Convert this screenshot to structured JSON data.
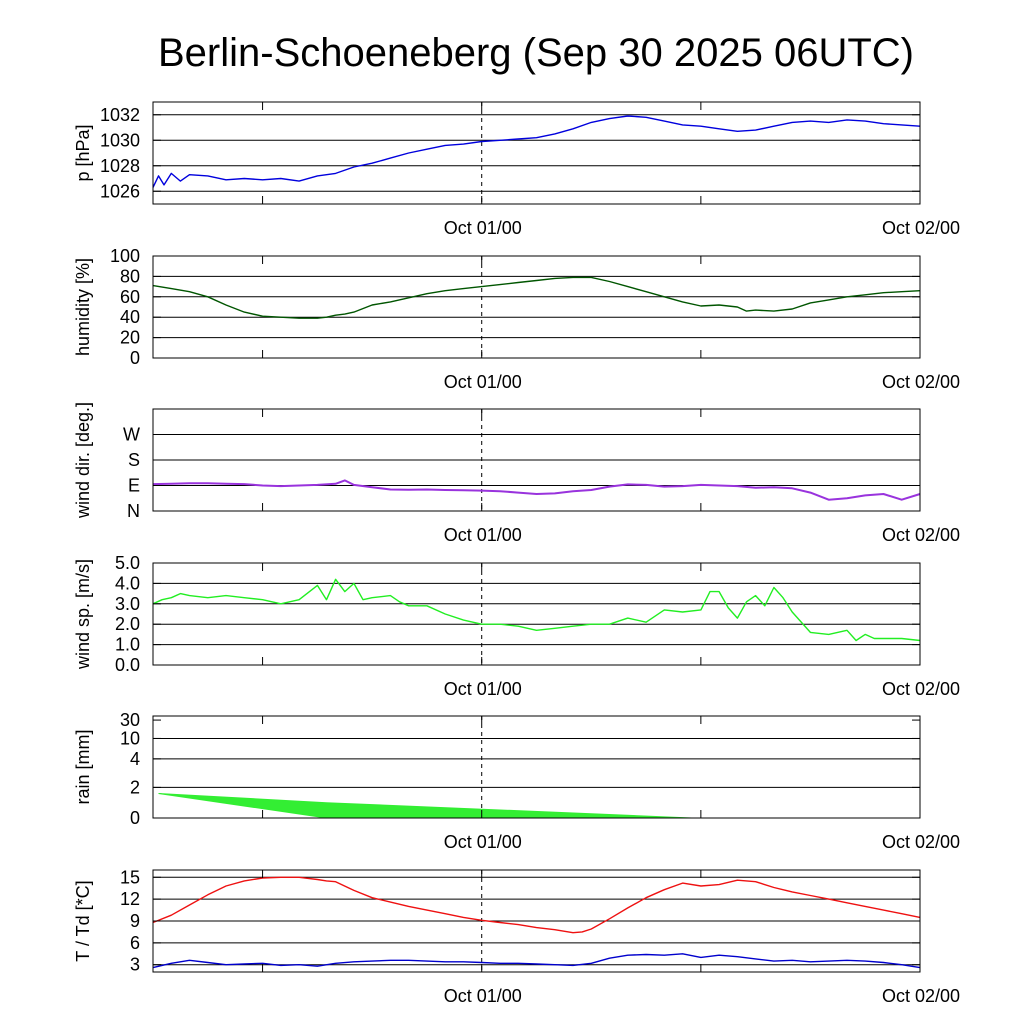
{
  "title": "Berlin-Schoeneberg (Sep 30 2025 06UTC)",
  "x_axis": {
    "range_hours": [
      0,
      42
    ],
    "tick_labels": [
      "Oct 01/00",
      "Oct 02/00"
    ],
    "tick_hours": [
      18,
      42
    ],
    "minor_tick_hours": [
      6,
      30
    ],
    "dashed_line_hour": 18
  },
  "colors": {
    "pressure": "#0000dd",
    "humidity": "#005500",
    "wind_dir": "#9933dd",
    "wind_speed": "#22ee22",
    "rain": "#33ee33",
    "temperature": "#ee1111",
    "dewpoint": "#0000cc"
  },
  "chart_data": [
    {
      "id": "pressure",
      "type": "line",
      "ylabel": "p [hPa]",
      "ylim": [
        1025,
        1033
      ],
      "yticks": [
        1026,
        1028,
        1030,
        1032
      ],
      "ytick_labels": [
        "1026",
        "1028",
        "1030",
        "1032"
      ],
      "gridlines": [
        1026,
        1028,
        1030,
        1032
      ],
      "series": [
        {
          "name": "pressure",
          "x": [
            0,
            0.3,
            0.6,
            1,
            1.5,
            2,
            3,
            4,
            5,
            6,
            7,
            8,
            9,
            10,
            11,
            12,
            13,
            14,
            15,
            16,
            17,
            18,
            19,
            20,
            21,
            22,
            23,
            24,
            25,
            26,
            27,
            28,
            29,
            30,
            31,
            32,
            33,
            34,
            35,
            36,
            37,
            38,
            39,
            40,
            41,
            42
          ],
          "y": [
            1026.3,
            1027.2,
            1026.5,
            1027.4,
            1026.8,
            1027.3,
            1027.2,
            1026.9,
            1027.0,
            1026.9,
            1027.0,
            1026.8,
            1027.2,
            1027.4,
            1027.9,
            1028.2,
            1028.6,
            1029.0,
            1029.3,
            1029.6,
            1029.7,
            1029.9,
            1030.0,
            1030.1,
            1030.2,
            1030.5,
            1030.9,
            1031.4,
            1031.7,
            1031.9,
            1031.8,
            1031.5,
            1031.2,
            1031.1,
            1030.9,
            1030.7,
            1030.8,
            1031.1,
            1031.4,
            1031.5,
            1031.4,
            1031.6,
            1031.5,
            1031.3,
            1031.2,
            1031.1
          ]
        }
      ]
    },
    {
      "id": "humidity",
      "type": "line",
      "ylabel": "humidity [%]",
      "ylim": [
        0,
        100
      ],
      "yticks": [
        0,
        20,
        40,
        60,
        80,
        100
      ],
      "ytick_labels": [
        "0",
        "20",
        "40",
        "60",
        "80",
        "100"
      ],
      "gridlines": [
        20,
        40,
        60,
        80
      ],
      "series": [
        {
          "name": "humidity",
          "x": [
            0,
            1,
            2,
            3,
            4,
            5,
            6,
            7,
            8,
            9,
            9.5,
            10,
            10.5,
            11,
            12,
            13,
            14,
            15,
            16,
            17,
            18,
            19,
            20,
            21,
            22,
            23,
            24,
            25,
            26,
            27,
            28,
            29,
            30,
            31,
            32,
            32.5,
            33,
            34,
            35,
            36,
            37,
            38,
            39,
            40,
            41,
            42
          ],
          "y": [
            71,
            68,
            65,
            60,
            52,
            45,
            41,
            40,
            39,
            39,
            40,
            42,
            43,
            45,
            52,
            55,
            59,
            63,
            66,
            68,
            70,
            72,
            74,
            76,
            78,
            79,
            79,
            75,
            70,
            65,
            60,
            55,
            51,
            52,
            50,
            46,
            47,
            46,
            48,
            54,
            57,
            60,
            62,
            64,
            65,
            66
          ]
        }
      ]
    },
    {
      "id": "wind_dir",
      "type": "line",
      "ylabel": "wind dir. [deg.]",
      "ylim": [
        0,
        360
      ],
      "yticks": [
        0,
        90,
        180,
        270
      ],
      "ytick_labels": [
        "N",
        "E",
        "S",
        "W"
      ],
      "gridlines": [
        90,
        180,
        270
      ],
      "series": [
        {
          "name": "wind direction",
          "x": [
            0,
            1,
            2,
            3,
            4,
            5,
            6,
            7,
            8,
            9,
            10,
            10.5,
            11,
            12,
            13,
            14,
            15,
            16,
            17,
            18,
            19,
            20,
            21,
            22,
            23,
            24,
            25,
            26,
            27,
            28,
            29,
            30,
            31,
            32,
            33,
            34,
            35,
            36,
            37,
            38,
            39,
            40,
            41,
            42
          ],
          "y": [
            95,
            96,
            98,
            98,
            96,
            95,
            90,
            88,
            90,
            92,
            96,
            108,
            92,
            84,
            76,
            75,
            76,
            74,
            73,
            72,
            70,
            65,
            60,
            62,
            70,
            74,
            86,
            94,
            92,
            86,
            88,
            92,
            90,
            88,
            82,
            84,
            80,
            65,
            40,
            45,
            55,
            60,
            40,
            60
          ]
        }
      ]
    },
    {
      "id": "wind_speed",
      "type": "line",
      "ylabel": "wind sp. [m/s]",
      "ylim": [
        0,
        5
      ],
      "yticks": [
        0,
        1,
        2,
        3,
        4,
        5
      ],
      "ytick_labels": [
        "0.0",
        "1.0",
        "2.0",
        "3.0",
        "4.0",
        "5.0"
      ],
      "gridlines": [
        1,
        2,
        3,
        4
      ],
      "series": [
        {
          "name": "wind speed",
          "x": [
            0,
            0.5,
            1,
            1.5,
            2,
            3,
            4,
            5,
            6,
            7,
            8,
            9,
            9.5,
            10,
            10.5,
            11,
            11.5,
            12,
            13,
            13.5,
            14,
            15,
            16,
            17,
            18,
            19,
            20,
            21,
            22,
            23,
            24,
            25,
            26,
            27,
            28,
            29,
            30,
            30.5,
            31,
            31.5,
            32,
            32.5,
            33,
            33.5,
            34,
            34.5,
            35,
            36,
            37,
            38,
            38.5,
            39,
            39.5,
            40,
            41,
            42
          ],
          "y": [
            3.0,
            3.2,
            3.3,
            3.5,
            3.4,
            3.3,
            3.4,
            3.3,
            3.2,
            3.0,
            3.2,
            3.9,
            3.2,
            4.2,
            3.6,
            4.0,
            3.2,
            3.3,
            3.4,
            3.1,
            2.9,
            2.9,
            2.5,
            2.2,
            2.0,
            2.0,
            1.9,
            1.7,
            1.8,
            1.9,
            2.0,
            2.0,
            2.3,
            2.1,
            2.7,
            2.6,
            2.7,
            3.6,
            3.6,
            2.8,
            2.3,
            3.1,
            3.4,
            2.9,
            3.8,
            3.3,
            2.6,
            1.6,
            1.5,
            1.7,
            1.2,
            1.5,
            1.3,
            1.3,
            1.3,
            1.2
          ]
        }
      ]
    },
    {
      "id": "rain",
      "type": "area",
      "ylabel": "rain [mm]",
      "ylim": [
        0,
        30
      ],
      "yticks": [
        0,
        2,
        4,
        10,
        30
      ],
      "ytick_labels": [
        "0",
        "2",
        "4",
        "10",
        "30"
      ],
      "gridlines": [
        2,
        4,
        10
      ],
      "series": [
        {
          "name": "rain range",
          "x": [
            0.3,
            9.5,
            29.5,
            42
          ],
          "upper": [
            1.6,
            1.0,
            0.0,
            0.0
          ],
          "lower": [
            1.6,
            0.0,
            0.0,
            0.0
          ]
        }
      ]
    },
    {
      "id": "temperature",
      "type": "line",
      "ylabel": "T / Td [*C]",
      "ylim": [
        2,
        16
      ],
      "yticks": [
        3,
        6,
        9,
        12,
        15
      ],
      "ytick_labels": [
        "3",
        "6",
        "9",
        "12",
        "15"
      ],
      "gridlines": [
        3,
        6,
        9,
        12,
        15
      ],
      "series": [
        {
          "name": "temperature",
          "x": [
            0,
            1,
            2,
            3,
            4,
            5,
            6,
            7,
            8,
            9,
            9.5,
            10,
            11,
            12,
            13,
            14,
            15,
            16,
            17,
            18,
            19,
            20,
            21,
            22,
            23,
            23.5,
            24,
            25,
            26,
            27,
            28,
            29,
            30,
            31,
            32,
            33,
            34,
            35,
            36,
            37,
            38,
            39,
            40,
            41,
            42
          ],
          "y": [
            8.8,
            9.8,
            11.2,
            12.6,
            13.8,
            14.5,
            14.9,
            15.0,
            15.0,
            14.7,
            14.5,
            14.4,
            13.2,
            12.2,
            11.6,
            11.0,
            10.5,
            10.0,
            9.5,
            9.1,
            8.8,
            8.5,
            8.1,
            7.8,
            7.4,
            7.5,
            7.9,
            9.3,
            10.8,
            12.2,
            13.3,
            14.2,
            13.8,
            14.0,
            14.6,
            14.4,
            13.6,
            13.0,
            12.5,
            12.0,
            11.5,
            11.0,
            10.5,
            10.0,
            9.5
          ]
        },
        {
          "name": "dewpoint",
          "x": [
            0,
            1,
            2,
            3,
            4,
            5,
            6,
            7,
            8,
            9,
            10,
            11,
            12,
            13,
            14,
            15,
            16,
            17,
            18,
            19,
            20,
            21,
            22,
            23,
            24,
            25,
            26,
            27,
            28,
            29,
            30,
            31,
            32,
            33,
            34,
            35,
            36,
            37,
            38,
            39,
            40,
            41,
            42
          ],
          "y": [
            2.6,
            3.2,
            3.6,
            3.3,
            3.0,
            3.1,
            3.2,
            2.9,
            3.0,
            2.8,
            3.2,
            3.4,
            3.5,
            3.6,
            3.6,
            3.5,
            3.4,
            3.4,
            3.3,
            3.2,
            3.2,
            3.1,
            3.0,
            2.9,
            3.2,
            3.9,
            4.3,
            4.4,
            4.3,
            4.5,
            4.0,
            4.3,
            4.1,
            3.8,
            3.5,
            3.6,
            3.4,
            3.5,
            3.6,
            3.5,
            3.3,
            3.0,
            2.6
          ]
        }
      ]
    }
  ]
}
